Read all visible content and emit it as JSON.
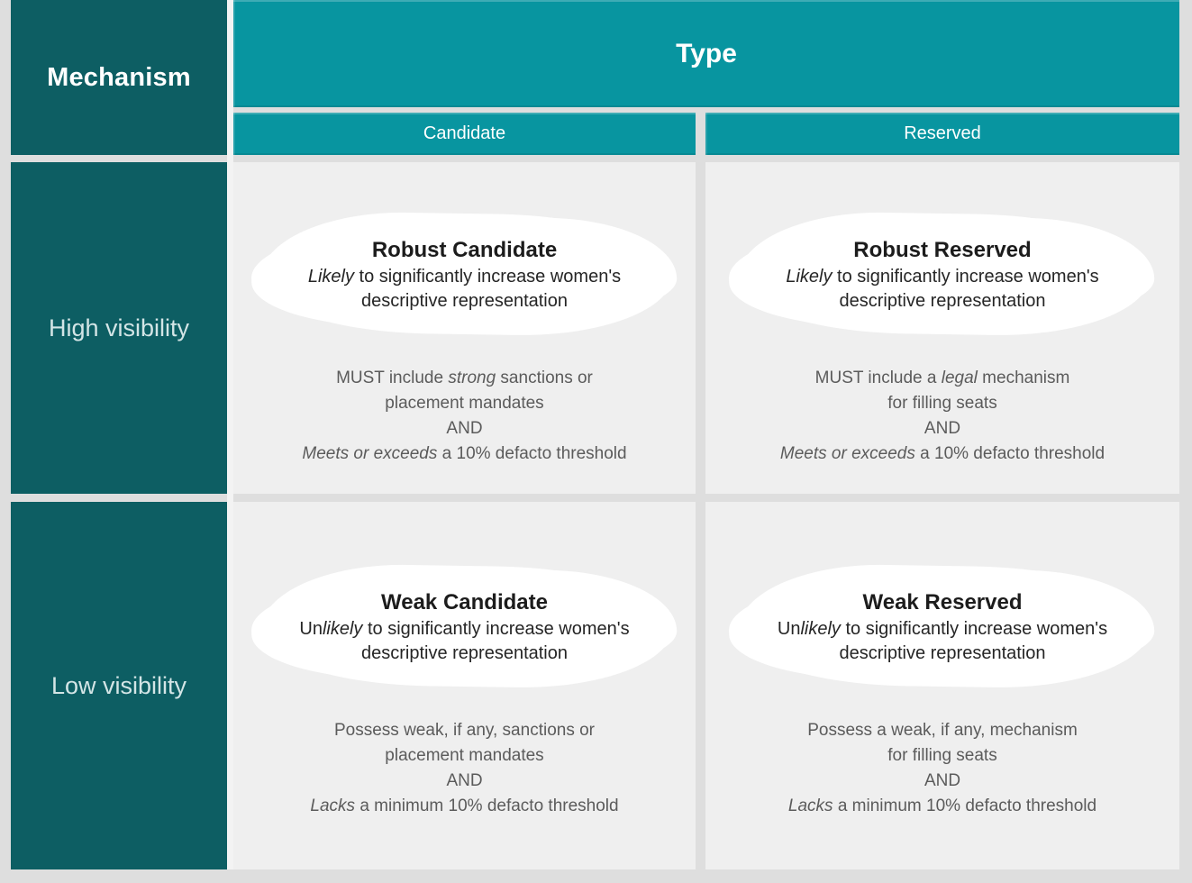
{
  "colors": {
    "teal_header": "#0895a0",
    "dark_teal": "#0d5e63",
    "cell_background": "#efefef",
    "page_background": "#dedede",
    "bubble_background": "#ffffff",
    "bubble_title_text": "#1c1c1c",
    "detail_text": "#5b5b5b",
    "row_label_text": "#d3e5e6",
    "header_text": "#ffffff"
  },
  "matrix": {
    "corner_label": "Mechanism",
    "type_header": "Type",
    "column_headers": [
      "Candidate",
      "Reserved"
    ],
    "row_headers": [
      "High visibility",
      "Low visibility"
    ],
    "cells": [
      {
        "name": "robust-candidate",
        "title": "Robust Candidate",
        "bubble_lines": [
          [
            {
              "t": "Likely",
              "i": true
            },
            {
              "t": " to significantly increase women's"
            }
          ],
          [
            {
              "t": "descriptive representation"
            }
          ]
        ],
        "detail_lines": [
          [
            {
              "t": "MUST include "
            },
            {
              "t": "strong",
              "i": true
            },
            {
              "t": " sanctions or"
            }
          ],
          [
            {
              "t": "placement mandates"
            }
          ],
          [
            {
              "t": "AND"
            }
          ],
          [
            {
              "t": "Meets or exceeds",
              "i": true
            },
            {
              "t": " a 10% defacto threshold"
            }
          ]
        ]
      },
      {
        "name": "robust-reserved",
        "title": "Robust Reserved",
        "bubble_lines": [
          [
            {
              "t": "Likely",
              "i": true
            },
            {
              "t": " to significantly increase women's"
            }
          ],
          [
            {
              "t": "descriptive representation"
            }
          ]
        ],
        "detail_lines": [
          [
            {
              "t": "MUST include a "
            },
            {
              "t": "legal",
              "i": true
            },
            {
              "t": " mechanism"
            }
          ],
          [
            {
              "t": "for filling seats"
            }
          ],
          [
            {
              "t": "AND"
            }
          ],
          [
            {
              "t": "Meets or exceeds",
              "i": true
            },
            {
              "t": " a 10% defacto threshold"
            }
          ]
        ]
      },
      {
        "name": "weak-candidate",
        "title": "Weak Candidate",
        "bubble_lines": [
          [
            {
              "t": "Un"
            },
            {
              "t": "likely",
              "i": true
            },
            {
              "t": " to significantly increase women's"
            }
          ],
          [
            {
              "t": "descriptive representation"
            }
          ]
        ],
        "detail_lines": [
          [
            {
              "t": "Possess weak, if any, sanctions or"
            }
          ],
          [
            {
              "t": "placement mandates"
            }
          ],
          [
            {
              "t": "AND"
            }
          ],
          [
            {
              "t": "Lacks",
              "i": true
            },
            {
              "t": " a minimum 10% defacto threshold"
            }
          ]
        ]
      },
      {
        "name": "weak-reserved",
        "title": "Weak Reserved",
        "bubble_lines": [
          [
            {
              "t": "Un"
            },
            {
              "t": "likely",
              "i": true
            },
            {
              "t": " to significantly increase women's"
            }
          ],
          [
            {
              "t": "descriptive representation"
            }
          ]
        ],
        "detail_lines": [
          [
            {
              "t": "Possess a weak, if any, mechanism"
            }
          ],
          [
            {
              "t": "for filling seats"
            }
          ],
          [
            {
              "t": "AND"
            }
          ],
          [
            {
              "t": "Lacks",
              "i": true
            },
            {
              "t": " a minimum 10% defacto threshold"
            }
          ]
        ]
      }
    ]
  }
}
